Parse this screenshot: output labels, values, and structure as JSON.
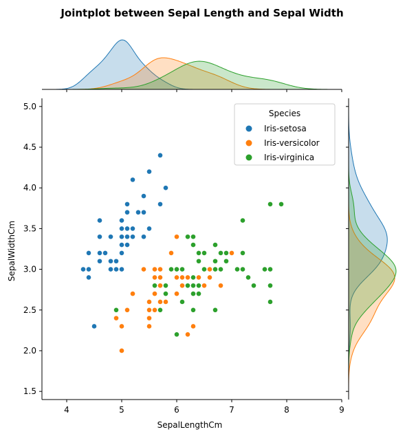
{
  "chart_data": {
    "type": "scatter",
    "title": "Jointplot between Sepal Length and Sepal Width",
    "xlabel": "SepalLengthCm",
    "ylabel": "SepalWidthCm",
    "xlim": [
      3.55,
      9.0
    ],
    "ylim": [
      1.4,
      5.1
    ],
    "x_ticks": [
      "4",
      "5",
      "6",
      "7",
      "8",
      "9"
    ],
    "y_ticks": [
      "1.5",
      "2.0",
      "2.5",
      "3.0",
      "3.5",
      "4.0",
      "4.5",
      "5.0"
    ],
    "grid": false,
    "marginals": "kde",
    "legend": {
      "title": "Species",
      "placement": "top-right",
      "entries": [
        "Iris-setosa",
        "Iris-versicolor",
        "Iris-virginica"
      ]
    },
    "colors": {
      "Iris-setosa": "#1f77b4",
      "Iris-versicolor": "#ff7f0e",
      "Iris-virginica": "#2ca02c"
    },
    "series": [
      {
        "name": "Iris-setosa",
        "x": [
          5.1,
          4.9,
          4.7,
          4.6,
          5.0,
          5.4,
          4.6,
          5.0,
          4.4,
          4.9,
          5.4,
          4.8,
          4.8,
          4.3,
          5.8,
          5.7,
          5.4,
          5.1,
          5.7,
          5.1,
          5.4,
          5.1,
          4.6,
          5.1,
          4.8,
          5.0,
          5.0,
          5.2,
          5.2,
          4.7,
          4.8,
          5.4,
          5.2,
          5.5,
          4.9,
          5.0,
          5.5,
          4.9,
          4.4,
          5.1,
          5.0,
          4.5,
          4.4,
          5.0,
          5.1,
          4.8,
          5.1,
          4.6,
          5.3,
          5.0
        ],
        "y": [
          3.5,
          3.0,
          3.2,
          3.1,
          3.6,
          3.9,
          3.4,
          3.4,
          2.9,
          3.1,
          3.7,
          3.4,
          3.0,
          3.0,
          4.0,
          4.4,
          3.9,
          3.5,
          3.8,
          3.8,
          3.4,
          3.7,
          3.6,
          3.3,
          3.4,
          3.0,
          3.4,
          3.5,
          3.4,
          3.2,
          3.1,
          3.4,
          4.1,
          4.2,
          3.1,
          3.2,
          3.5,
          3.1,
          3.0,
          3.4,
          3.5,
          2.3,
          3.2,
          3.5,
          3.8,
          3.0,
          3.8,
          3.2,
          3.7,
          3.3
        ]
      },
      {
        "name": "Iris-versicolor",
        "x": [
          7.0,
          6.4,
          6.9,
          5.5,
          6.5,
          5.7,
          6.3,
          4.9,
          6.6,
          5.2,
          5.0,
          5.9,
          6.0,
          6.1,
          5.6,
          6.7,
          5.6,
          5.8,
          6.2,
          5.6,
          5.9,
          6.1,
          6.3,
          6.1,
          6.4,
          6.6,
          6.8,
          6.7,
          6.0,
          5.7,
          5.5,
          5.5,
          5.8,
          6.0,
          5.4,
          6.0,
          6.7,
          6.3,
          5.6,
          5.5,
          5.5,
          6.1,
          5.8,
          5.0,
          5.6,
          5.7,
          5.7,
          6.2,
          5.1,
          5.7
        ],
        "y": [
          3.2,
          3.2,
          3.1,
          2.3,
          2.8,
          2.8,
          3.3,
          2.4,
          2.9,
          2.7,
          2.0,
          3.0,
          2.2,
          2.9,
          2.9,
          3.1,
          3.0,
          2.7,
          2.2,
          2.5,
          3.2,
          2.8,
          2.5,
          2.8,
          2.9,
          3.0,
          2.8,
          3.0,
          2.9,
          2.6,
          2.4,
          2.4,
          2.7,
          2.7,
          3.0,
          3.4,
          3.1,
          2.3,
          3.0,
          2.5,
          2.6,
          3.0,
          2.6,
          2.3,
          2.7,
          3.0,
          2.9,
          2.9,
          2.5,
          2.8
        ]
      },
      {
        "name": "Iris-virginica",
        "x": [
          6.3,
          5.8,
          7.1,
          6.3,
          6.5,
          7.6,
          4.9,
          7.3,
          6.7,
          7.2,
          6.5,
          6.4,
          6.8,
          5.7,
          5.8,
          6.4,
          6.5,
          7.7,
          7.7,
          6.0,
          6.9,
          5.6,
          7.7,
          6.3,
          6.7,
          7.2,
          6.2,
          6.1,
          6.4,
          7.2,
          7.4,
          7.9,
          6.4,
          6.3,
          6.1,
          7.7,
          6.3,
          6.4,
          6.0,
          6.9,
          6.7,
          6.9,
          5.8,
          6.8,
          6.7,
          6.7,
          6.3,
          6.5,
          6.2,
          5.9
        ],
        "y": [
          3.3,
          2.7,
          3.0,
          2.9,
          3.0,
          3.0,
          2.5,
          2.9,
          2.5,
          3.6,
          3.2,
          2.7,
          3.0,
          2.5,
          2.8,
          3.2,
          3.0,
          3.8,
          2.6,
          2.2,
          3.2,
          2.8,
          2.8,
          2.7,
          3.3,
          3.2,
          2.8,
          3.0,
          2.8,
          3.0,
          2.8,
          3.8,
          2.8,
          2.8,
          2.6,
          3.0,
          3.4,
          3.1,
          3.0,
          3.1,
          3.1,
          3.1,
          2.7,
          3.2,
          3.3,
          3.0,
          2.5,
          3.0,
          3.4,
          3.0
        ]
      }
    ]
  }
}
